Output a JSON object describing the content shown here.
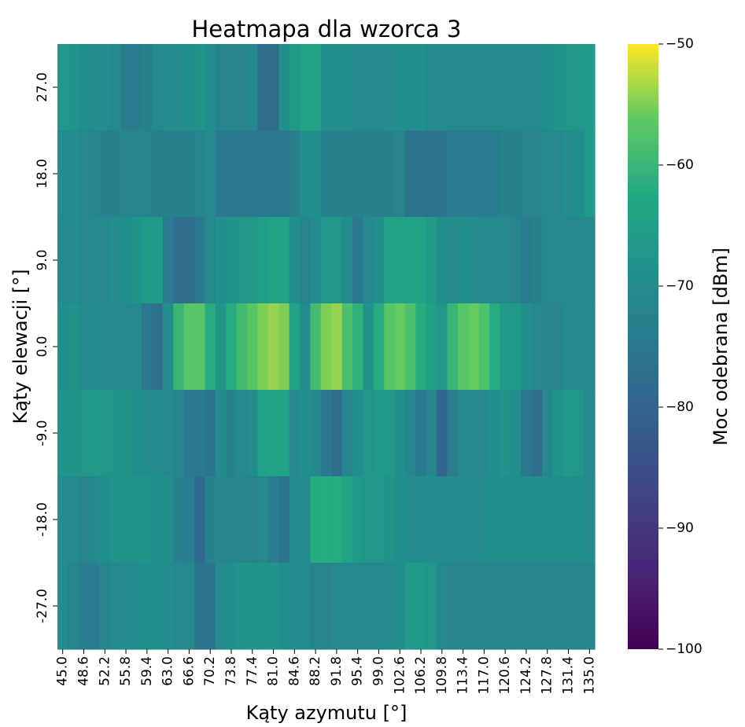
{
  "chart_data": {
    "type": "heatmap",
    "title": "Heatmapa dla wzorca 3",
    "xlabel": "Kąty azymutu [°]",
    "ylabel": "Kąty elewacji [°]",
    "colorbar_label": "Moc odebrana [dBm]",
    "colormap": "viridis",
    "vmin": -100,
    "vmax": -50,
    "colorbar_ticks": [
      "−50",
      "−60",
      "−70",
      "−80",
      "−90",
      "−100"
    ],
    "x_tick_labels": [
      "45.0",
      "48.6",
      "52.2",
      "55.8",
      "59.4",
      "63.0",
      "66.6",
      "70.2",
      "73.8",
      "77.4",
      "81.0",
      "84.6",
      "88.2",
      "91.8",
      "95.4",
      "99.0",
      "102.6",
      "106.2",
      "109.8",
      "113.4",
      "117.0",
      "120.6",
      "124.2",
      "127.8",
      "131.4",
      "135.0"
    ],
    "y_tick_labels": [
      "27.0",
      "18.0",
      "9.0",
      "0.0",
      "-9.0",
      "-18.0",
      "-27.0"
    ],
    "x_values": [
      45.0,
      46.8,
      48.6,
      50.4,
      52.2,
      54.0,
      55.8,
      57.6,
      59.4,
      61.2,
      63.0,
      64.8,
      66.6,
      68.4,
      70.2,
      72.0,
      73.8,
      75.6,
      77.4,
      79.2,
      81.0,
      82.8,
      84.6,
      86.4,
      88.2,
      90.0,
      91.8,
      93.6,
      95.4,
      97.2,
      99.0,
      100.8,
      102.6,
      104.4,
      106.2,
      108.0,
      109.8,
      111.6,
      113.4,
      115.2,
      117.0,
      118.8,
      120.6,
      122.4,
      124.2,
      126.0,
      127.8,
      129.6,
      131.4,
      133.2,
      135.0
    ],
    "y_values": [
      27.0,
      18.0,
      9.0,
      0.0,
      -9.0,
      -18.0,
      -27.0
    ],
    "values": [
      [
        -67,
        -68,
        -69,
        -70,
        -70,
        -71,
        -74,
        -74,
        -73,
        -71,
        -70,
        -70,
        -69,
        -68,
        -70,
        -72,
        -72,
        -72,
        -71,
        -78,
        -78,
        -69,
        -66,
        -64,
        -64,
        -69,
        -69,
        -69,
        -71,
        -71,
        -71,
        -70,
        -69,
        -69,
        -69,
        -71,
        -71,
        -71,
        -71,
        -71,
        -71,
        -71,
        -71,
        -71,
        -71,
        -71,
        -69,
        -68,
        -67,
        -67,
        -66
      ],
      [
        -70,
        -70,
        -71,
        -72,
        -73,
        -73,
        -72,
        -72,
        -72,
        -73,
        -73,
        -73,
        -73,
        -72,
        -71,
        -75,
        -75,
        -75,
        -75,
        -75,
        -75,
        -75,
        -73,
        -69,
        -69,
        -73,
        -73,
        -73,
        -73,
        -73,
        -73,
        -73,
        -72,
        -76,
        -76,
        -76,
        -76,
        -74,
        -74,
        -74,
        -74,
        -74,
        -73,
        -73,
        -72,
        -72,
        -71,
        -71,
        -70,
        -69,
        -66
      ],
      [
        -71,
        -70,
        -71,
        -71,
        -71,
        -70,
        -69,
        -68,
        -66,
        -66,
        -74,
        -78,
        -78,
        -75,
        -71,
        -69,
        -68,
        -67,
        -67,
        -65,
        -64,
        -64,
        -69,
        -72,
        -70,
        -67,
        -67,
        -70,
        -75,
        -71,
        -69,
        -64,
        -64,
        -64,
        -64,
        -66,
        -69,
        -70,
        -69,
        -70,
        -71,
        -71,
        -71,
        -72,
        -74,
        -73,
        -71,
        -71,
        -71,
        -71,
        -71
      ],
      [
        -69,
        -68,
        -70,
        -70,
        -71,
        -71,
        -71,
        -71,
        -75,
        -77,
        -70,
        -60,
        -57,
        -57,
        -62,
        -67,
        -62,
        -59,
        -57,
        -55,
        -54,
        -55,
        -64,
        -70,
        -59,
        -55,
        -54,
        -58,
        -61,
        -68,
        -62,
        -57,
        -56,
        -58,
        -62,
        -65,
        -67,
        -60,
        -57,
        -56,
        -58,
        -62,
        -66,
        -66,
        -69,
        -71,
        -72,
        -72,
        -71,
        -71,
        -71
      ],
      [
        -68,
        -68,
        -67,
        -66,
        -67,
        -68,
        -68,
        -69,
        -70,
        -70,
        -71,
        -72,
        -75,
        -75,
        -76,
        -71,
        -73,
        -71,
        -70,
        -64,
        -64,
        -64,
        -71,
        -69,
        -71,
        -75,
        -78,
        -72,
        -69,
        -67,
        -66,
        -66,
        -69,
        -72,
        -75,
        -72,
        -80,
        -74,
        -71,
        -71,
        -71,
        -69,
        -68,
        -69,
        -75,
        -78,
        -71,
        -68,
        -66,
        -67,
        -71
      ],
      [
        -70,
        -71,
        -72,
        -71,
        -69,
        -68,
        -68,
        -68,
        -68,
        -69,
        -69,
        -73,
        -74,
        -79,
        -73,
        -72,
        -72,
        -72,
        -72,
        -71,
        -74,
        -76,
        -70,
        -70,
        -62,
        -62,
        -62,
        -64,
        -66,
        -67,
        -67,
        -68,
        -69,
        -70,
        -70,
        -70,
        -70,
        -70,
        -70,
        -70,
        -70,
        -69,
        -69,
        -69,
        -69,
        -69,
        -69,
        -69,
        -69,
        -69,
        -70
      ],
      [
        -70,
        -72,
        -74,
        -74,
        -72,
        -71,
        -70,
        -70,
        -69,
        -69,
        -70,
        -71,
        -71,
        -76,
        -76,
        -71,
        -69,
        -68,
        -68,
        -68,
        -68,
        -69,
        -70,
        -70,
        -72,
        -72,
        -71,
        -71,
        -71,
        -71,
        -71,
        -70,
        -69,
        -66,
        -66,
        -67,
        -71,
        -72,
        -72,
        -72,
        -72,
        -72,
        -72,
        -72,
        -72,
        -72,
        -72,
        -72,
        -72,
        -72,
        -72
      ]
    ]
  }
}
